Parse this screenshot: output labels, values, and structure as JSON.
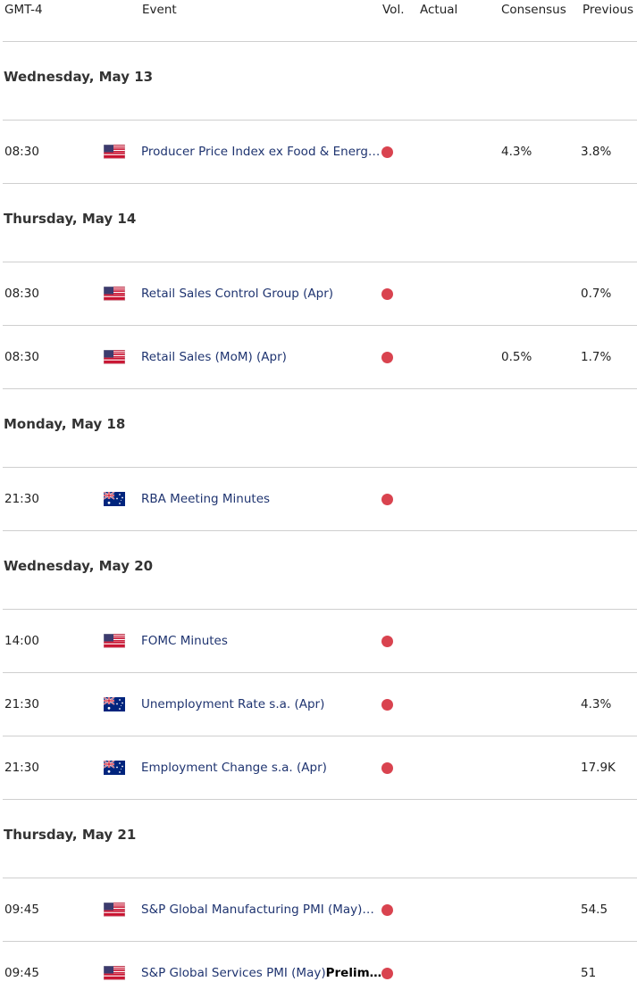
{
  "header": {
    "time": "GMT-4",
    "event": "Event",
    "vol": "Vol.",
    "actual": "Actual",
    "consensus": "Consensus",
    "previous": "Previous"
  },
  "days": [
    {
      "date": "Wednesday, May 13",
      "events": [
        {
          "time": "08:30",
          "event": "Producer Price Index ex Food & Energ…",
          "consensus": "4.3%",
          "previous": "3.8%"
        }
      ]
    },
    {
      "date": "Thursday, May 14",
      "events": [
        {
          "time": "08:30",
          "event": "Retail Sales Control Group (Apr)",
          "previous": "0.7%"
        },
        {
          "time": "08:30",
          "event": "Retail Sales (MoM) (Apr)",
          "consensus": "0.5%",
          "previous": "1.7%"
        }
      ]
    },
    {
      "date": "Monday, May 18",
      "events": [
        {
          "time": "21:30",
          "event": "RBA Meeting Minutes"
        }
      ]
    },
    {
      "date": "Wednesday, May 20",
      "events": [
        {
          "time": "14:00",
          "event": "FOMC Minutes"
        },
        {
          "time": "21:30",
          "event": "Unemployment Rate s.a. (Apr)",
          "previous": "4.3%"
        },
        {
          "time": "21:30",
          "event": "Employment Change s.a. (Apr)",
          "previous": "17.9K"
        }
      ]
    },
    {
      "date": "Thursday, May 21",
      "events": [
        {
          "time": "09:45",
          "event": "S&P Global Manufacturing PMI (May)…",
          "previous": "54.5"
        },
        {
          "time": "09:45",
          "event": "S&P Global Services PMI (May)",
          "event_bold": "Prelim…",
          "previous": "51"
        }
      ]
    }
  ]
}
